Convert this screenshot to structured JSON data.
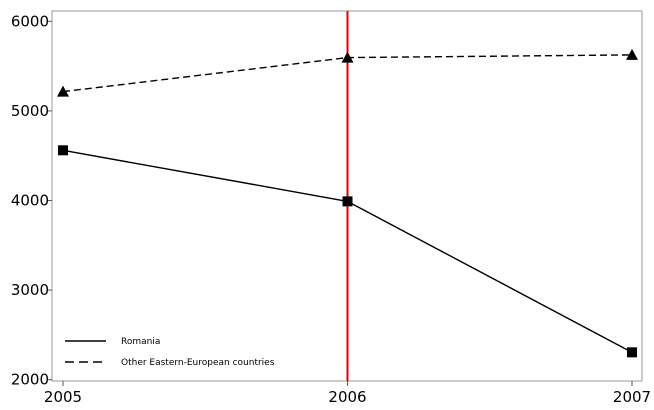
{
  "chart_data": {
    "type": "line",
    "title": "",
    "xlabel": "",
    "ylabel": "",
    "x": [
      2005,
      2006,
      2007
    ],
    "xlim": [
      2005,
      2007
    ],
    "ylim": [
      1985,
      6115
    ],
    "xticks": [
      "2005",
      "2006",
      "2007"
    ],
    "yticks": [
      2000,
      3000,
      4000,
      5000,
      6000
    ],
    "grid": false,
    "legend_position": "bottom-left",
    "vertical_marker": {
      "x": 2006,
      "color": "#e00000"
    },
    "series": [
      {
        "name": "Romania",
        "values": [
          4560,
          3990,
          2305
        ],
        "line": "solid",
        "marker": "square",
        "color": "#000000"
      },
      {
        "name": "Other Eastern-European countries",
        "values": [
          5215,
          5595,
          5625
        ],
        "line": "dashed",
        "marker": "triangle",
        "color": "#000000"
      }
    ]
  }
}
